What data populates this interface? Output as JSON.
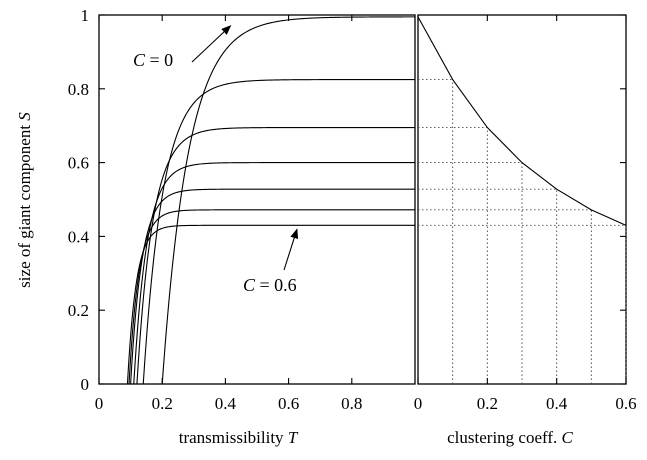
{
  "chart_data": [
    {
      "type": "line",
      "name": "left-panel",
      "xlabel_text": "transmissibility",
      "xlabel_var": "T",
      "ylabel_text": "size of giant component",
      "ylabel_var": "S",
      "xlim": [
        0,
        1
      ],
      "ylim": [
        0,
        1
      ],
      "x_ticks": [
        "0",
        "0.2",
        "0.4",
        "0.6",
        "0.8"
      ],
      "y_ticks": [
        "0",
        "0.2",
        "0.4",
        "0.6",
        "0.8",
        "1"
      ],
      "series": [
        {
          "C": 0.0,
          "Tc": 0.2,
          "Smax": 0.995,
          "rate": 12
        },
        {
          "C": 0.1,
          "Tc": 0.14,
          "Smax": 0.825,
          "rate": 16
        },
        {
          "C": 0.2,
          "Tc": 0.12,
          "Smax": 0.695,
          "rate": 20
        },
        {
          "C": 0.3,
          "Tc": 0.11,
          "Smax": 0.6,
          "rate": 24
        },
        {
          "C": 0.4,
          "Tc": 0.1,
          "Smax": 0.528,
          "rate": 28
        },
        {
          "C": 0.5,
          "Tc": 0.095,
          "Smax": 0.472,
          "rate": 32
        },
        {
          "C": 0.6,
          "Tc": 0.09,
          "Smax": 0.43,
          "rate": 36
        }
      ],
      "annotations": [
        {
          "text_var": "C",
          "text_rest": " = 0",
          "target_T": 0.41,
          "target_S": 0.96
        },
        {
          "text_var": "C",
          "text_rest": " = 0.6",
          "target_T": 0.62,
          "target_S": 0.43
        }
      ]
    },
    {
      "type": "line",
      "name": "right-panel",
      "xlabel_text": "clustering coeff.",
      "xlabel_var": "C",
      "xlim": [
        0,
        0.6
      ],
      "ylim": [
        0,
        1
      ],
      "x_ticks": [
        "0",
        "0.2",
        "0.4",
        "0.6"
      ],
      "x": [
        0.0,
        0.1,
        0.2,
        0.3,
        0.4,
        0.5,
        0.6
      ],
      "y": [
        0.995,
        0.825,
        0.695,
        0.6,
        0.528,
        0.472,
        0.43
      ],
      "grid": "dotted at each point"
    }
  ]
}
